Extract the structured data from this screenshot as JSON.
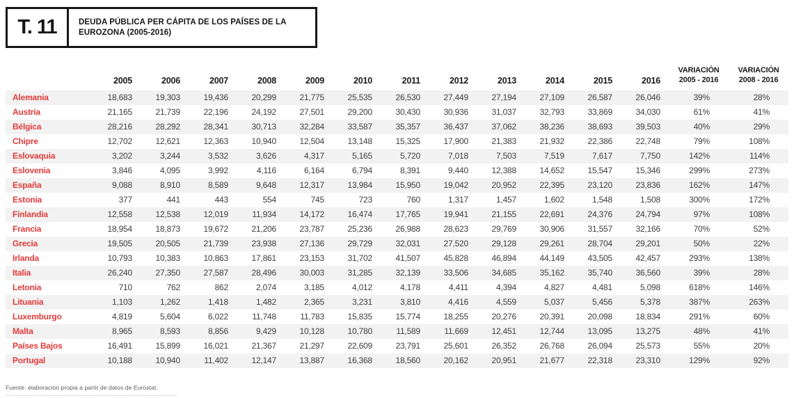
{
  "header": {
    "tag": "T. 11",
    "title": "DEUDA PÚBLICA PER CÁPITA DE LOS PAÍSES DE LA EUROZONA (2005-2016)"
  },
  "footer": {
    "source": "Fuente: elaboración propia a partir de datos de Eurostat."
  },
  "colors": {
    "country_accent": "#e13b3b",
    "row_stripe": "#f2f2f2",
    "number_text": "#3e3e3e",
    "header_text": "#1b1b1b"
  },
  "chart_data": {
    "type": "table",
    "title": "DEUDA PÚBLICA PER CÁPITA DE LOS PAÍSES DE LA EUROZONA (2005-2016)",
    "year_columns": [
      "2005",
      "2006",
      "2007",
      "2008",
      "2009",
      "2010",
      "2011",
      "2012",
      "2013",
      "2014",
      "2015",
      "2016"
    ],
    "variation_columns": [
      {
        "line1": "VARIACIÓN",
        "line2": "2005 - 2016"
      },
      {
        "line1": "VARIACIÓN",
        "line2": "2008 - 2016"
      }
    ],
    "rows": [
      {
        "country": "Alemania",
        "values": [
          "18,683",
          "19,303",
          "19,436",
          "20,299",
          "21,775",
          "25,535",
          "26,530",
          "27,449",
          "27,194",
          "27,109",
          "26,587",
          "26,046"
        ],
        "variations": [
          "39%",
          "28%"
        ]
      },
      {
        "country": "Austria",
        "values": [
          "21,165",
          "21,739",
          "22,196",
          "24,192",
          "27,501",
          "29,200",
          "30,430",
          "30,936",
          "31,037",
          "32,793",
          "33,869",
          "34,030"
        ],
        "variations": [
          "61%",
          "41%"
        ]
      },
      {
        "country": "Bélgica",
        "values": [
          "28,216",
          "28,292",
          "28,341",
          "30,713",
          "32,284",
          "33,587",
          "35,357",
          "36,437",
          "37,062",
          "38,236",
          "38,693",
          "39,503"
        ],
        "variations": [
          "40%",
          "29%"
        ]
      },
      {
        "country": "Chipre",
        "values": [
          "12,702",
          "12,621",
          "12,363",
          "10,940",
          "12,504",
          "13,148",
          "15,325",
          "17,900",
          "21,383",
          "21,932",
          "22,386",
          "22,748"
        ],
        "variations": [
          "79%",
          "108%"
        ]
      },
      {
        "country": "Eslovaquia",
        "values": [
          "3,202",
          "3,244",
          "3,532",
          "3,626",
          "4,317",
          "5,165",
          "5,720",
          "7,018",
          "7,503",
          "7,519",
          "7,617",
          "7,750"
        ],
        "variations": [
          "142%",
          "114%"
        ]
      },
      {
        "country": "Eslovenia",
        "values": [
          "3,846",
          "4,095",
          "3,992",
          "4,116",
          "6,164",
          "6,794",
          "8,391",
          "9,440",
          "12,388",
          "14,652",
          "15,547",
          "15,346"
        ],
        "variations": [
          "299%",
          "273%"
        ]
      },
      {
        "country": "España",
        "values": [
          "9,088",
          "8,910",
          "8,589",
          "9,648",
          "12,317",
          "13,984",
          "15,950",
          "19,042",
          "20,952",
          "22,395",
          "23,120",
          "23,836"
        ],
        "variations": [
          "162%",
          "147%"
        ]
      },
      {
        "country": "Estonia",
        "values": [
          "377",
          "441",
          "443",
          "554",
          "745",
          "723",
          "760",
          "1,317",
          "1,457",
          "1,602",
          "1,548",
          "1,508"
        ],
        "variations": [
          "300%",
          "172%"
        ]
      },
      {
        "country": "Finlandia",
        "values": [
          "12,558",
          "12,538",
          "12,019",
          "11,934",
          "14,172",
          "16,474",
          "17,765",
          "19,941",
          "21,155",
          "22,691",
          "24,376",
          "24,794"
        ],
        "variations": [
          "97%",
          "108%"
        ]
      },
      {
        "country": "Francia",
        "values": [
          "18,954",
          "18,873",
          "19,672",
          "21,206",
          "23,787",
          "25,236",
          "26,988",
          "28,623",
          "29,769",
          "30,906",
          "31,557",
          "32,166"
        ],
        "variations": [
          "70%",
          "52%"
        ]
      },
      {
        "country": "Grecia",
        "values": [
          "19,505",
          "20,505",
          "21,739",
          "23,938",
          "27,136",
          "29,729",
          "32,031",
          "27,520",
          "29,128",
          "29,261",
          "28,704",
          "29,201"
        ],
        "variations": [
          "50%",
          "22%"
        ]
      },
      {
        "country": "Irlanda",
        "values": [
          "10,793",
          "10,383",
          "10,863",
          "17,861",
          "23,153",
          "31,702",
          "41,507",
          "45,828",
          "46,894",
          "44,149",
          "43,505",
          "42,457"
        ],
        "variations": [
          "293%",
          "138%"
        ]
      },
      {
        "country": "Italia",
        "values": [
          "26,240",
          "27,350",
          "27,587",
          "28,496",
          "30,003",
          "31,285",
          "32,139",
          "33,506",
          "34,685",
          "35,162",
          "35,740",
          "36,560"
        ],
        "variations": [
          "39%",
          "28%"
        ]
      },
      {
        "country": "Letonia",
        "values": [
          "710",
          "762",
          "862",
          "2,074",
          "3,185",
          "4,012",
          "4,178",
          "4,411",
          "4,394",
          "4,827",
          "4,481",
          "5,098"
        ],
        "variations": [
          "618%",
          "146%"
        ]
      },
      {
        "country": "Lituania",
        "values": [
          "1,103",
          "1,262",
          "1,418",
          "1,482",
          "2,365",
          "3,231",
          "3,810",
          "4,416",
          "4,559",
          "5,037",
          "5,456",
          "5,378"
        ],
        "variations": [
          "387%",
          "263%"
        ]
      },
      {
        "country": "Luxemburgo",
        "values": [
          "4,819",
          "5,604",
          "6,022",
          "11,748",
          "11,783",
          "15,835",
          "15,774",
          "18,255",
          "20,276",
          "20,391",
          "20,098",
          "18,834"
        ],
        "variations": [
          "291%",
          "60%"
        ]
      },
      {
        "country": "Malta",
        "values": [
          "8,965",
          "8,593",
          "8,856",
          "9,429",
          "10,128",
          "10,780",
          "11,589",
          "11,669",
          "12,451",
          "12,744",
          "13,095",
          "13,275"
        ],
        "variations": [
          "48%",
          "41%"
        ]
      },
      {
        "country": "Países Bajos",
        "values": [
          "16,491",
          "15,899",
          "16,021",
          "21,367",
          "21,297",
          "22,609",
          "23,791",
          "25,601",
          "26,352",
          "26,768",
          "26,094",
          "25,573"
        ],
        "variations": [
          "55%",
          "20%"
        ]
      },
      {
        "country": "Portugal",
        "values": [
          "10,188",
          "10,940",
          "11,402",
          "12,147",
          "13,887",
          "16,368",
          "18,560",
          "20,162",
          "20,951",
          "21,677",
          "22,318",
          "23,310"
        ],
        "variations": [
          "129%",
          "92%"
        ]
      }
    ]
  }
}
